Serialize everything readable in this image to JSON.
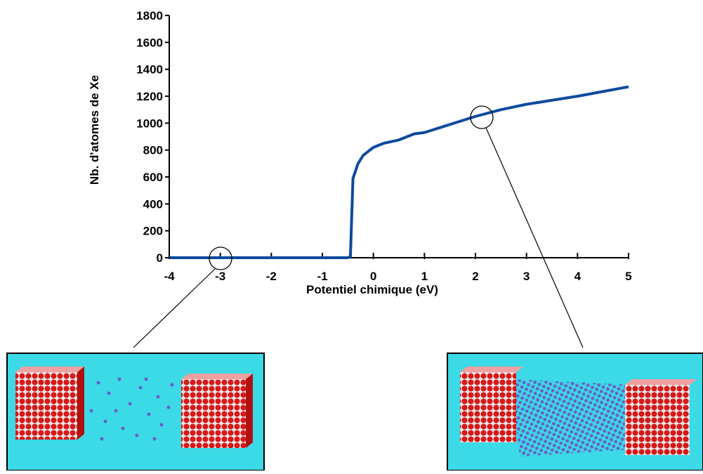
{
  "chart_data": {
    "type": "line",
    "xlabel": "Potentiel chimique (eV)",
    "ylabel": "Nb. d'atomes de Xe",
    "x": [
      -4,
      -3,
      -2,
      -1,
      -0.5,
      -0.45,
      -0.4,
      -0.3,
      -0.2,
      -0.1,
      0,
      0.2,
      0.5,
      0.8,
      1,
      1.5,
      2,
      2.5,
      3,
      4,
      5
    ],
    "series": [
      {
        "name": "Xe",
        "color": "#0d4a9e",
        "values": [
          0,
          0,
          0,
          0,
          0,
          10,
          590,
          700,
          760,
          790,
          820,
          850,
          875,
          920,
          930,
          990,
          1050,
          1100,
          1140,
          1200,
          1270
        ]
      }
    ],
    "xlim": [
      -4,
      5
    ],
    "xticks": [
      -4,
      -3,
      -2,
      -1,
      0,
      1,
      2,
      3,
      4,
      5
    ],
    "ylim": [
      0,
      1800
    ],
    "yticks": [
      0,
      200,
      400,
      600,
      800,
      1000,
      1200,
      1400,
      1600,
      1800
    ]
  }
}
